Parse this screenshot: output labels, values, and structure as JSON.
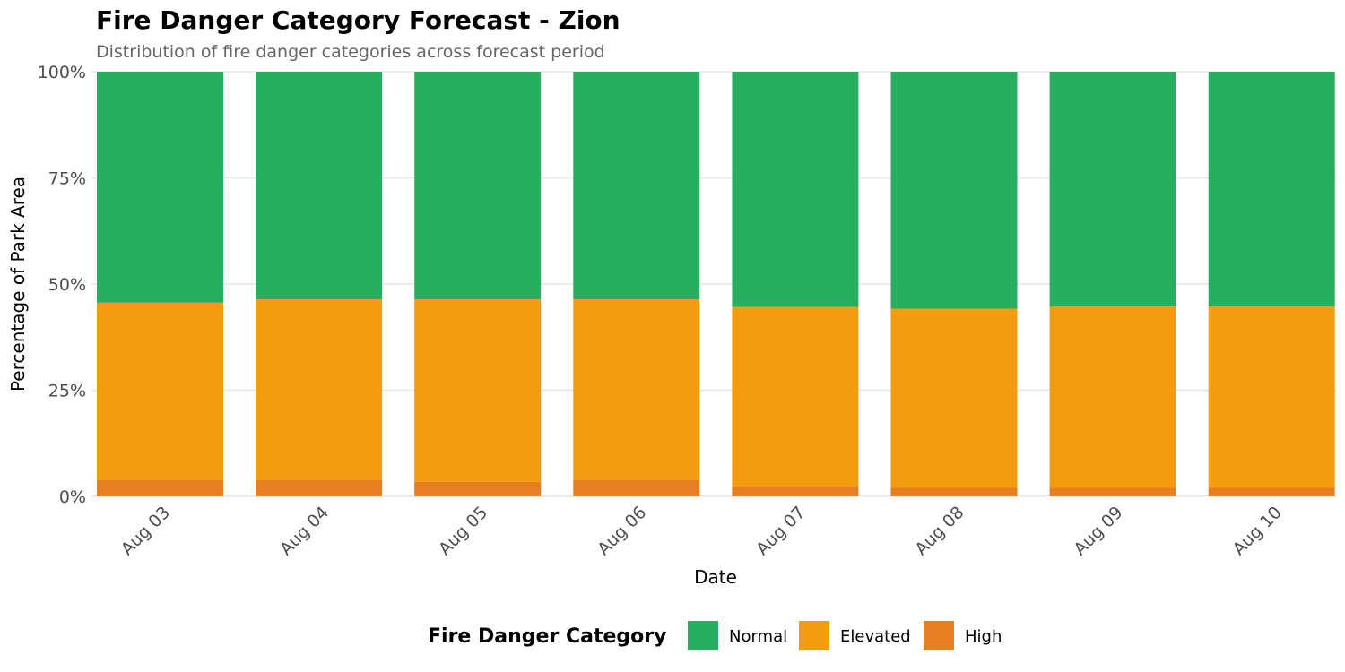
{
  "chart_data": {
    "type": "bar",
    "stacked": true,
    "title": "Fire Danger Category Forecast - Zion",
    "subtitle": "Distribution of fire danger categories across forecast period",
    "xlabel": "Date",
    "ylabel": "Percentage of Park Area",
    "ylim": [
      0,
      100
    ],
    "yticks": [
      "0%",
      "25%",
      "50%",
      "75%",
      "100%"
    ],
    "ytick_values": [
      0,
      25,
      50,
      75,
      100
    ],
    "grid": true,
    "categories": [
      "Aug 03",
      "Aug 04",
      "Aug 05",
      "Aug 06",
      "Aug 07",
      "Aug 08",
      "Aug 09",
      "Aug 10"
    ],
    "series": [
      {
        "name": "High",
        "color": "#E67E22",
        "values": [
          3.8,
          3.8,
          3.4,
          3.8,
          2.3,
          2.0,
          2.0,
          2.0
        ]
      },
      {
        "name": "Elevated",
        "color": "#F39C12",
        "values": [
          41.8,
          42.6,
          43.0,
          42.6,
          42.3,
          42.2,
          42.7,
          42.7
        ]
      },
      {
        "name": "Normal",
        "color": "#27AE60",
        "values": [
          54.4,
          53.6,
          53.6,
          53.6,
          55.4,
          55.8,
          55.3,
          55.3
        ]
      }
    ],
    "legend": {
      "title": "Fire Danger Category",
      "position": "bottom",
      "entries": [
        "Normal",
        "Elevated",
        "High"
      ]
    }
  }
}
